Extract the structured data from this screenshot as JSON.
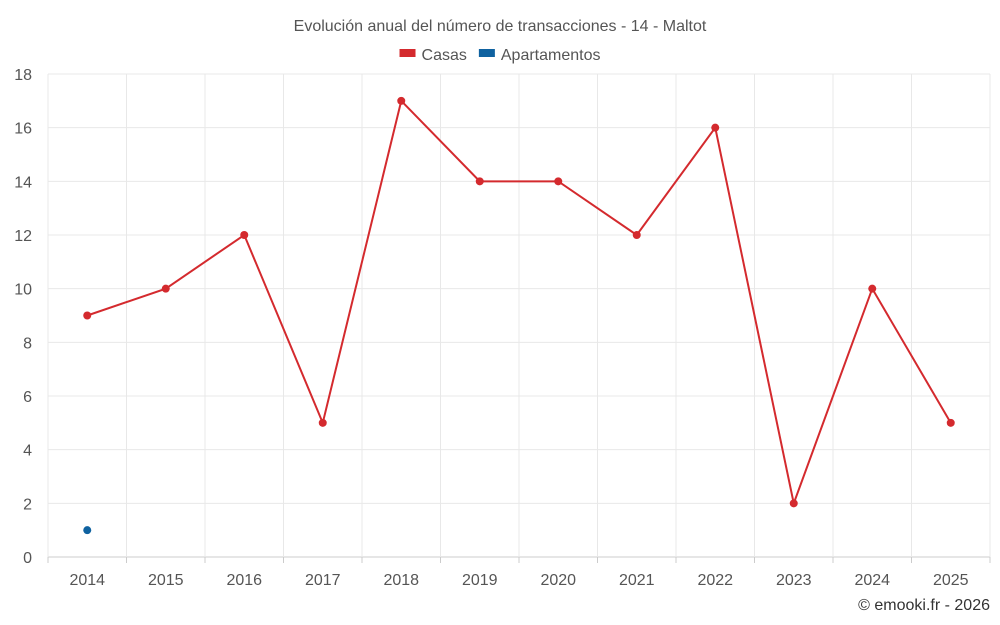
{
  "chart_data": {
    "type": "line",
    "title": "Evolución anual del número de transacciones - 14 - Maltot",
    "categories": [
      "2014",
      "2015",
      "2016",
      "2017",
      "2018",
      "2019",
      "2020",
      "2021",
      "2022",
      "2023",
      "2024",
      "2025"
    ],
    "series": [
      {
        "name": "Casas",
        "color": "#d42a2e",
        "values": [
          9,
          10,
          12,
          5,
          17,
          14,
          14,
          12,
          16,
          2,
          10,
          5
        ]
      },
      {
        "name": "Apartamentos",
        "color": "#0f62a0",
        "values": [
          1,
          null,
          null,
          null,
          null,
          null,
          null,
          null,
          null,
          null,
          null,
          null
        ]
      }
    ],
    "ylim": [
      0,
      18
    ],
    "yticks": [
      0,
      2,
      4,
      6,
      8,
      10,
      12,
      14,
      16,
      18
    ],
    "xlabel": "",
    "ylabel": "",
    "grid": true,
    "legend_position": "top-center"
  },
  "credit": "© emooki.fr - 2026"
}
